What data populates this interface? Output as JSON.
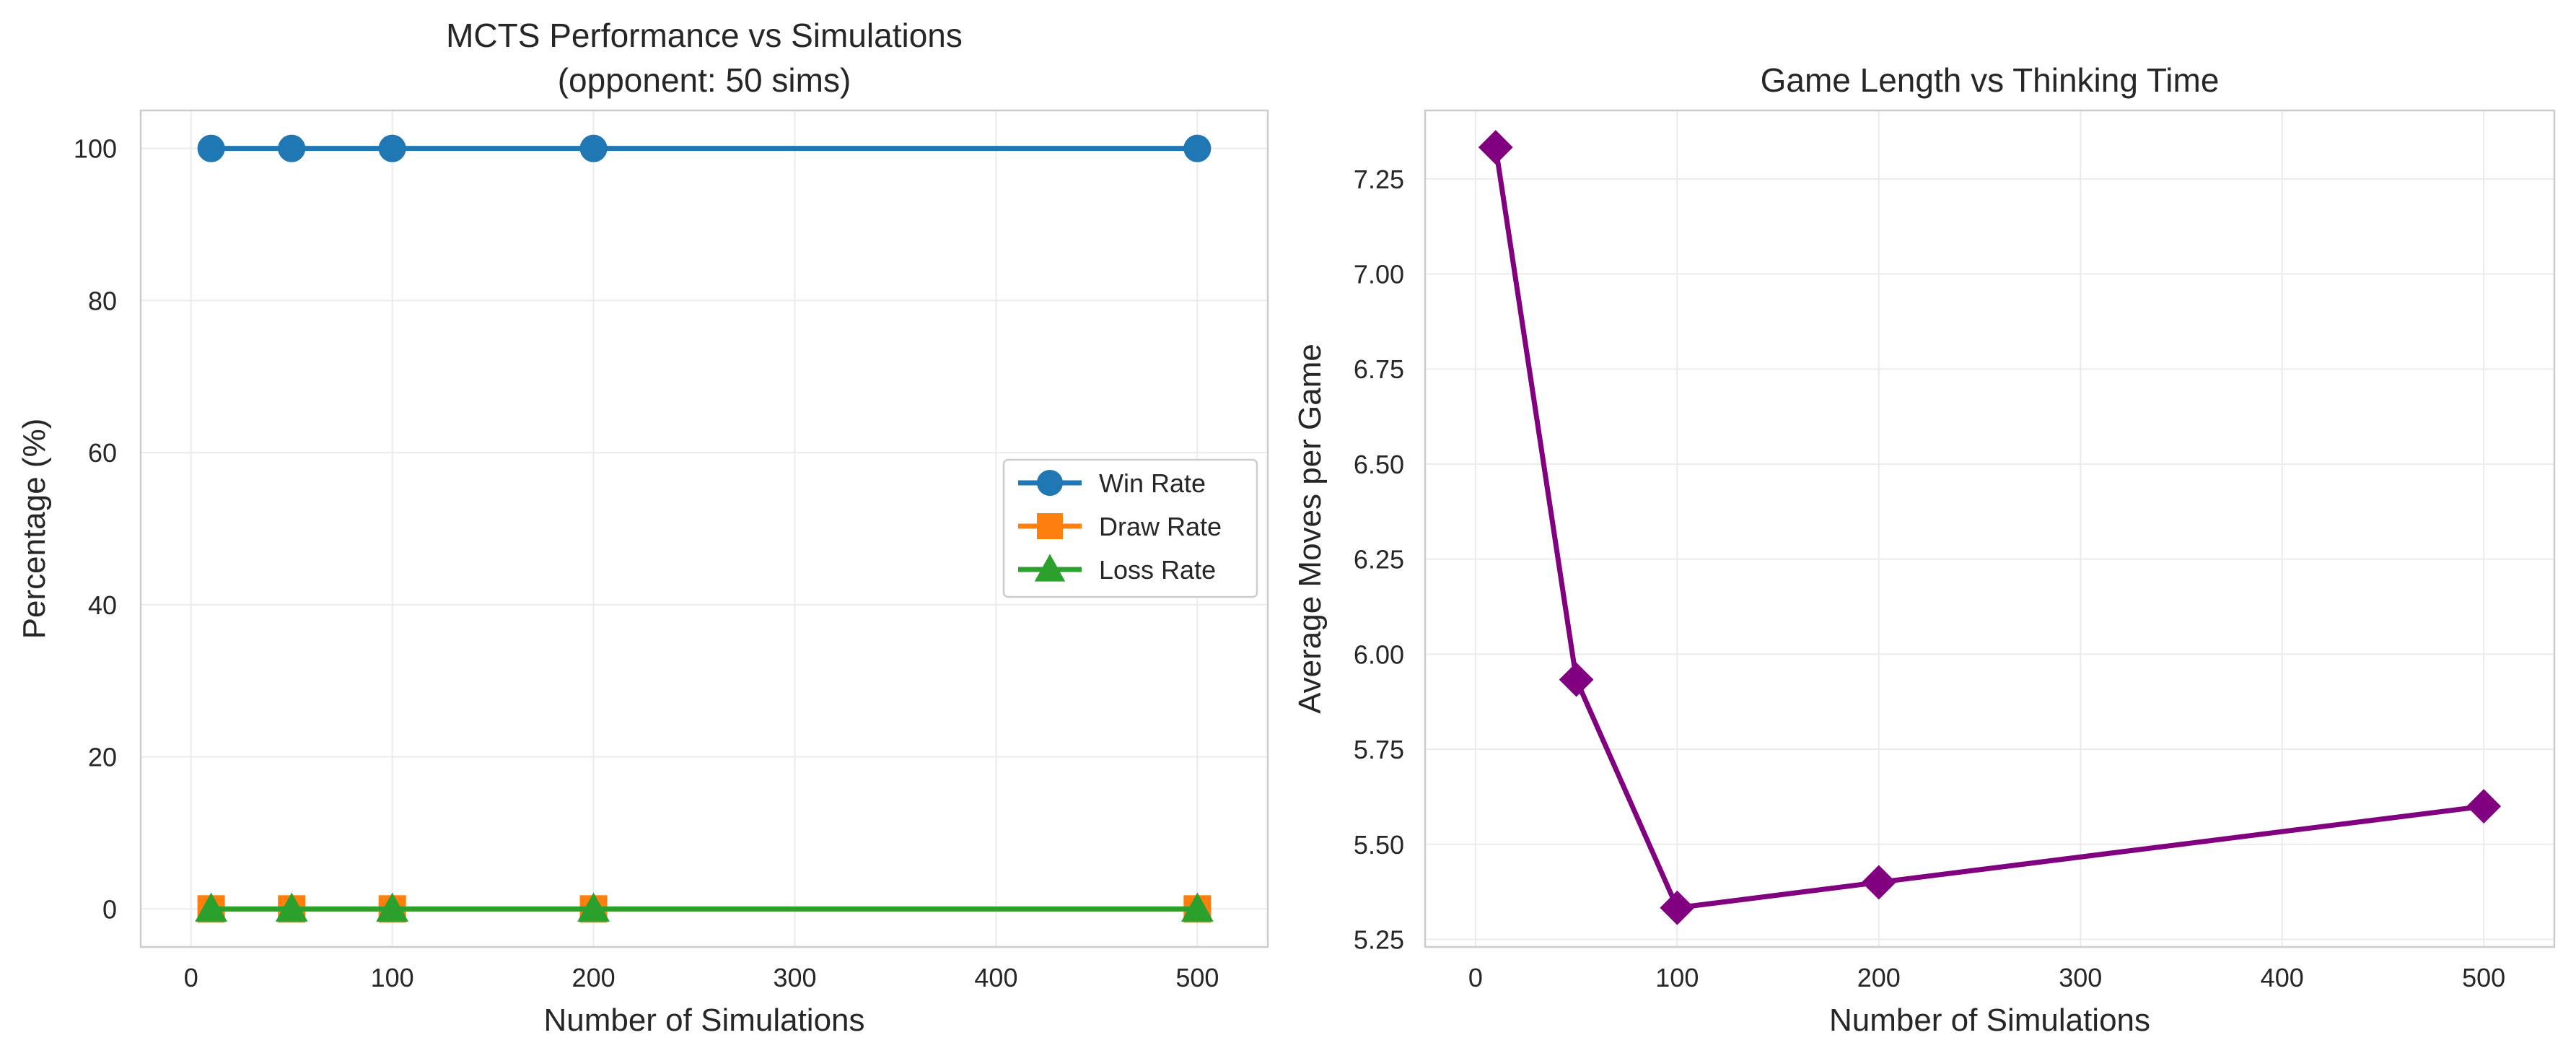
{
  "chart_data": [
    {
      "type": "line",
      "title": "MCTS Performance vs Simulations\n(opponent: 50 sims)",
      "title_lines": [
        "MCTS Performance vs Simulations",
        "(opponent: 50 sims)"
      ],
      "xlabel": "Number of Simulations",
      "ylabel": "Percentage (%)",
      "xlim": [
        -25,
        535
      ],
      "ylim": [
        -5,
        105
      ],
      "xticks": [
        0,
        100,
        200,
        300,
        400,
        500
      ],
      "yticks": [
        0,
        20,
        40,
        60,
        80,
        100
      ],
      "grid": true,
      "legend_position": "center-right",
      "x": [
        10,
        50,
        100,
        200,
        500
      ],
      "series": [
        {
          "name": "Win Rate",
          "values": [
            100,
            100,
            100,
            100,
            100
          ],
          "color": "#1f77b4",
          "marker": "circle"
        },
        {
          "name": "Draw Rate",
          "values": [
            0,
            0,
            0,
            0,
            0
          ],
          "color": "#ff7f0e",
          "marker": "square"
        },
        {
          "name": "Loss Rate",
          "values": [
            0,
            0,
            0,
            0,
            0
          ],
          "color": "#2ca02c",
          "marker": "triangle"
        }
      ]
    },
    {
      "type": "line",
      "title": "Game Length vs Thinking Time",
      "title_lines": [
        "Game Length vs Thinking Time"
      ],
      "xlabel": "Number of Simulations",
      "ylabel": "Average Moves per Game",
      "xlim": [
        -25,
        535
      ],
      "ylim": [
        5.23,
        7.43
      ],
      "xticks": [
        0,
        100,
        200,
        300,
        400,
        500
      ],
      "yticks": [
        5.25,
        5.5,
        5.75,
        6.0,
        6.25,
        6.5,
        6.75,
        7.0,
        7.25
      ],
      "ytick_format": 2,
      "grid": true,
      "x": [
        10,
        50,
        100,
        200,
        500
      ],
      "series": [
        {
          "values": [
            7.333,
            5.933,
            5.333,
            5.4,
            5.6
          ],
          "color": "#800080",
          "marker": "diamond"
        }
      ]
    }
  ]
}
